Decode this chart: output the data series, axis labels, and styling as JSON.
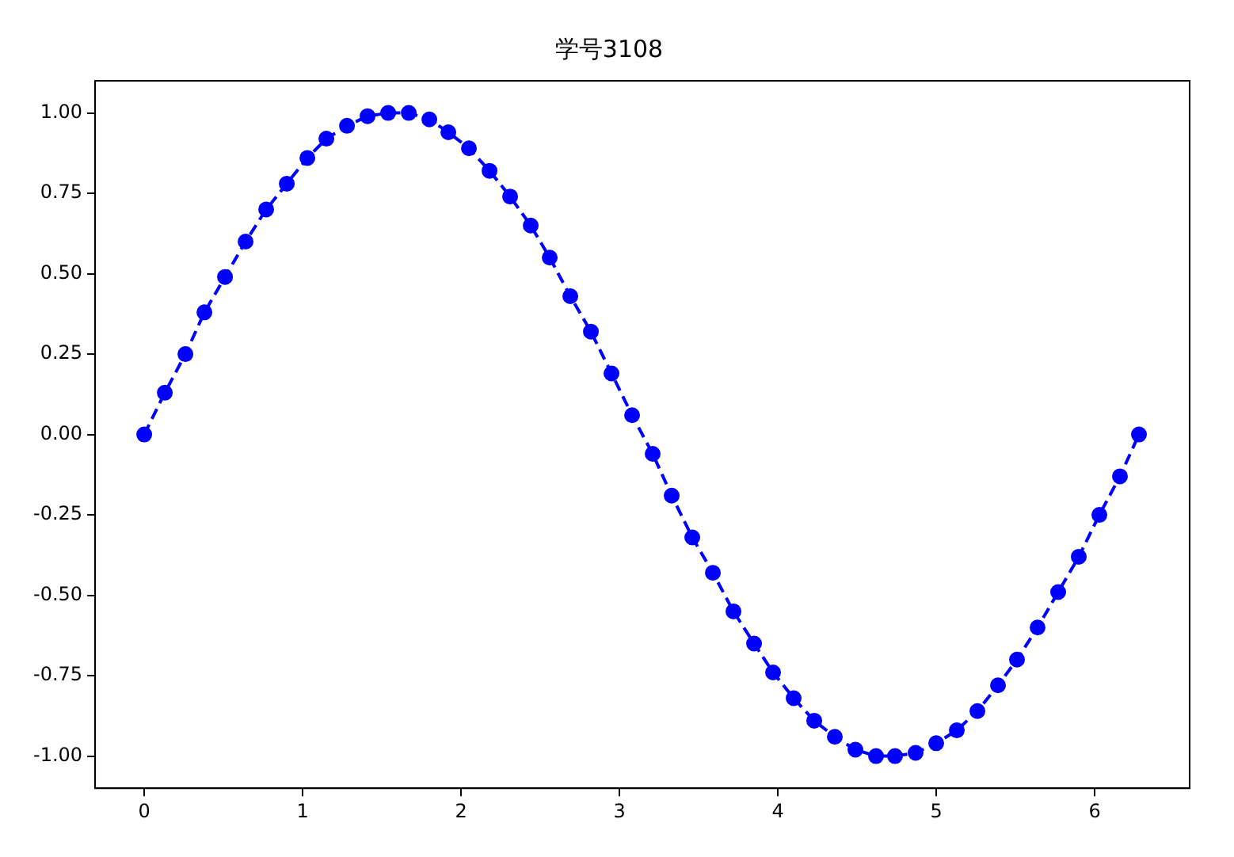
{
  "chart_data": {
    "type": "line",
    "title": "学号3108",
    "x": [
      0,
      0.13,
      0.26,
      0.38,
      0.51,
      0.64,
      0.77,
      0.9,
      1.03,
      1.15,
      1.28,
      1.41,
      1.54,
      1.67,
      1.8,
      1.92,
      2.05,
      2.18,
      2.31,
      2.44,
      2.56,
      2.69,
      2.82,
      2.95,
      3.08,
      3.21,
      3.33,
      3.46,
      3.59,
      3.72,
      3.85,
      3.97,
      4.1,
      4.23,
      4.36,
      4.49,
      4.62,
      4.74,
      4.87,
      5.0,
      5.13,
      5.26,
      5.39,
      5.51,
      5.64,
      5.77,
      5.9,
      6.03,
      6.16,
      6.28
    ],
    "series": [
      {
        "color": "#0000ff",
        "values": [
          0,
          0.13,
          0.25,
          0.38,
          0.49,
          0.6,
          0.7,
          0.78,
          0.86,
          0.92,
          0.96,
          0.99,
          1.0,
          1.0,
          0.98,
          0.94,
          0.89,
          0.82,
          0.74,
          0.65,
          0.55,
          0.43,
          0.32,
          0.19,
          0.06,
          -0.06,
          -0.19,
          -0.32,
          -0.43,
          -0.55,
          -0.65,
          -0.74,
          -0.82,
          -0.89,
          -0.94,
          -0.98,
          -1.0,
          -1.0,
          -0.99,
          -0.96,
          -0.92,
          -0.86,
          -0.78,
          -0.7,
          -0.6,
          -0.49,
          -0.38,
          -0.25,
          -0.13,
          0
        ]
      }
    ],
    "xlim": [
      -0.31,
      6.6
    ],
    "ylim": [
      -1.1,
      1.1
    ],
    "xticks": [
      0,
      1,
      2,
      3,
      4,
      5,
      6
    ],
    "yticks": [
      {
        "value": -1,
        "label": "-1.00"
      },
      {
        "value": -0.75,
        "label": "-0.75"
      },
      {
        "value": -0.5,
        "label": "-0.50"
      },
      {
        "value": -0.25,
        "label": "-0.25"
      },
      {
        "value": 0,
        "label": "0.00"
      },
      {
        "value": 0.25,
        "label": "0.25"
      },
      {
        "value": 0.5,
        "label": "0.50"
      },
      {
        "value": 0.75,
        "label": "0.75"
      },
      {
        "value": 1,
        "label": "1.00"
      }
    ],
    "grid": false,
    "legend": false,
    "marker": "circle",
    "line_style": "dashed"
  }
}
